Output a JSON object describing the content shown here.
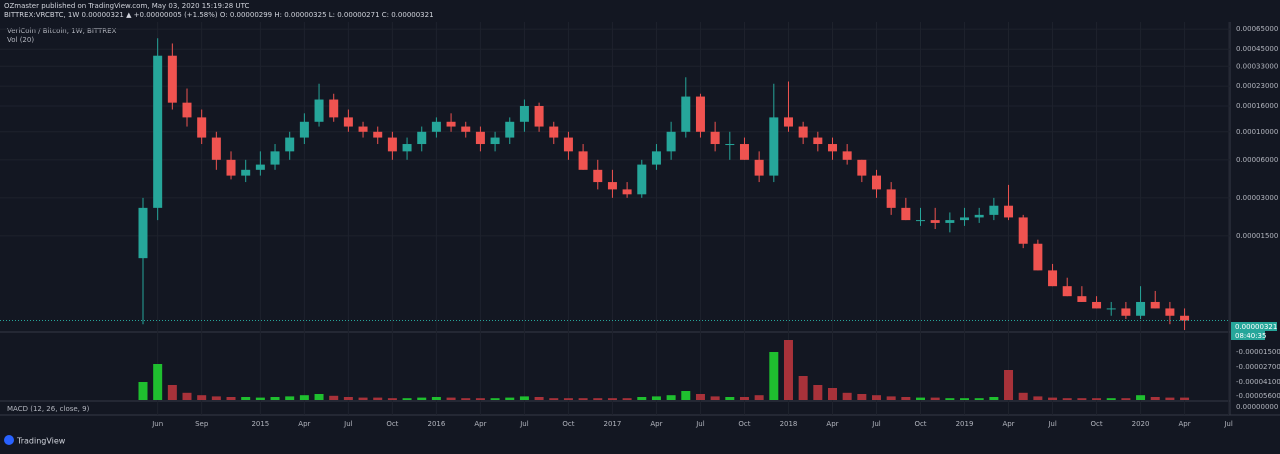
{
  "header": {
    "line1": "OZmaster published on TradingView.com, May 03, 2020 15:19:28 UTC",
    "line2": "BITTREX:VRCBTC, 1W  0.00000321  ▲ +0.00000005 (+1.58%)  O: 0.00000299  H: 0.00000325  L: 0.00000271  C: 0.00000321"
  },
  "footer": {
    "brand": "TradingView"
  },
  "chart_data": {
    "type": "candlestick",
    "title": "VeriCoin / Bitcoin, 1W, BITTREX",
    "volume_label": "Vol (20)",
    "macd_label": "MACD (12, 26, close, 9)",
    "last_price": "0.00000321",
    "countdown": "08:40:35",
    "y_scale": "log",
    "up_color": "#26a69a",
    "down_color": "#ef5350",
    "up_volume_color": "#1fbf2f",
    "down_volume_color": "#a8323a",
    "lower_axis_labels": [
      "-0.00001500",
      "-0.00002700",
      "-0.00004100",
      "-0.00005600",
      "0.00000000"
    ],
    "ylim": [
      2.8e-06,
      0.0007
    ],
    "yticks": [
      {
        "value": 0.00065,
        "label": "0.00065000"
      },
      {
        "value": 0.00045,
        "label": "0.00045000"
      },
      {
        "value": 0.00033,
        "label": "0.00033000"
      },
      {
        "value": 0.00023,
        "label": "0.00023000"
      },
      {
        "value": 0.00016,
        "label": "0.00016000"
      },
      {
        "value": 0.0001,
        "label": "0.00010000"
      },
      {
        "value": 6e-05,
        "label": "0.00006000"
      },
      {
        "value": 3e-05,
        "label": "0.00003000"
      },
      {
        "value": 1.5e-05,
        "label": "0.00001500"
      }
    ],
    "xticks": [
      {
        "value": "2014-06",
        "label": "Jun"
      },
      {
        "value": "2014-09",
        "label": "Sep"
      },
      {
        "value": "2015-01",
        "label": "2015"
      },
      {
        "value": "2015-04",
        "label": "Apr"
      },
      {
        "value": "2015-07",
        "label": "Jul"
      },
      {
        "value": "2015-10",
        "label": "Oct"
      },
      {
        "value": "2016-01",
        "label": "2016"
      },
      {
        "value": "2016-04",
        "label": "Apr"
      },
      {
        "value": "2016-07",
        "label": "Jul"
      },
      {
        "value": "2016-10",
        "label": "Oct"
      },
      {
        "value": "2017-01",
        "label": "2017"
      },
      {
        "value": "2017-04",
        "label": "Apr"
      },
      {
        "value": "2017-07",
        "label": "Jul"
      },
      {
        "value": "2017-10",
        "label": "Oct"
      },
      {
        "value": "2018-01",
        "label": "2018"
      },
      {
        "value": "2018-04",
        "label": "Apr"
      },
      {
        "value": "2018-07",
        "label": "Jul"
      },
      {
        "value": "2018-10",
        "label": "Oct"
      },
      {
        "value": "2019-01",
        "label": "2019"
      },
      {
        "value": "2019-04",
        "label": "Apr"
      },
      {
        "value": "2019-07",
        "label": "Jul"
      },
      {
        "value": "2019-10",
        "label": "Oct"
      },
      {
        "value": "2020-01",
        "label": "2020"
      },
      {
        "value": "2020-04",
        "label": "Apr"
      },
      {
        "value": "2020-07",
        "label": "Jul"
      }
    ],
    "x": [
      "2014-05",
      "2014-06",
      "2014-07",
      "2014-08",
      "2014-09",
      "2014-10",
      "2014-11",
      "2014-12",
      "2015-01",
      "2015-02",
      "2015-03",
      "2015-04",
      "2015-05",
      "2015-06",
      "2015-07",
      "2015-08",
      "2015-09",
      "2015-10",
      "2015-11",
      "2015-12",
      "2016-01",
      "2016-02",
      "2016-03",
      "2016-04",
      "2016-05",
      "2016-06",
      "2016-07",
      "2016-08",
      "2016-09",
      "2016-10",
      "2016-11",
      "2016-12",
      "2017-01",
      "2017-02",
      "2017-03",
      "2017-04",
      "2017-05",
      "2017-06",
      "2017-07",
      "2017-08",
      "2017-09",
      "2017-10",
      "2017-11",
      "2017-12",
      "2018-01",
      "2018-02",
      "2018-03",
      "2018-04",
      "2018-05",
      "2018-06",
      "2018-07",
      "2018-08",
      "2018-09",
      "2018-10",
      "2018-11",
      "2018-12",
      "2019-01",
      "2019-02",
      "2019-03",
      "2019-04",
      "2019-05",
      "2019-06",
      "2019-07",
      "2019-08",
      "2019-09",
      "2019-10",
      "2019-11",
      "2019-12",
      "2020-01",
      "2020-02",
      "2020-03",
      "2020-04"
    ],
    "open": [
      1e-05,
      2.5e-05,
      0.0004,
      0.00017,
      0.00013,
      9e-05,
      6e-05,
      4.5e-05,
      5e-05,
      5.5e-05,
      7e-05,
      9e-05,
      0.00012,
      0.00018,
      0.00013,
      0.00011,
      0.0001,
      9e-05,
      7e-05,
      8e-05,
      0.0001,
      0.00012,
      0.00011,
      0.0001,
      8e-05,
      9e-05,
      0.00012,
      0.00016,
      0.00011,
      9e-05,
      7e-05,
      5e-05,
      4e-05,
      3.5e-05,
      3.2e-05,
      5.5e-05,
      7e-05,
      0.0001,
      0.00019,
      0.0001,
      8e-05,
      8e-05,
      6e-05,
      4.5e-05,
      0.00013,
      0.00011,
      9e-05,
      8e-05,
      7e-05,
      6e-05,
      4.5e-05,
      3.5e-05,
      2.5e-05,
      2e-05,
      2e-05,
      1.9e-05,
      2e-05,
      2.1e-05,
      2.2e-05,
      2.6e-05,
      2.1e-05,
      1.3e-05,
      8e-06,
      6e-06,
      5e-06,
      4.5e-06,
      4e-06,
      4e-06,
      3.5e-06,
      4.5e-06,
      4e-06,
      3.5e-06
    ],
    "high": [
      3e-05,
      0.00055,
      0.0005,
      0.00022,
      0.00015,
      0.0001,
      7e-05,
      6e-05,
      7e-05,
      8e-05,
      0.0001,
      0.00014,
      0.00024,
      0.0002,
      0.00015,
      0.00012,
      0.00011,
      0.0001,
      9e-05,
      0.00011,
      0.00013,
      0.00014,
      0.00012,
      0.00011,
      0.0001,
      0.00013,
      0.00018,
      0.00017,
      0.00012,
      0.0001,
      8e-05,
      6e-05,
      5e-05,
      4e-05,
      6e-05,
      8e-05,
      0.00012,
      0.00027,
      0.0002,
      0.00012,
      0.0001,
      9e-05,
      7e-05,
      0.00024,
      0.00025,
      0.00012,
      0.0001,
      9e-05,
      8e-05,
      6e-05,
      5e-05,
      4e-05,
      3e-05,
      2.5e-05,
      2.5e-05,
      2.3e-05,
      2.5e-05,
      2.5e-05,
      3e-05,
      3.8e-05,
      2.2e-05,
      1.4e-05,
      9e-06,
      7e-06,
      6e-06,
      5e-06,
      4.5e-06,
      4.5e-06,
      6e-06,
      5.5e-06,
      4.5e-06,
      4e-06
    ],
    "low": [
      3e-06,
      2e-05,
      0.00015,
      0.00011,
      8e-05,
      5e-05,
      4.2e-05,
      4e-05,
      4.5e-05,
      5e-05,
      6e-05,
      8e-05,
      0.00011,
      0.00012,
      0.0001,
      9e-05,
      8e-05,
      6e-05,
      6e-05,
      7e-05,
      9e-05,
      0.0001,
      9e-05,
      7e-05,
      7e-05,
      8e-05,
      0.0001,
      0.0001,
      8e-05,
      6e-05,
      5e-05,
      3.5e-05,
      3e-05,
      3e-05,
      3e-05,
      5e-05,
      6e-05,
      9e-05,
      9e-05,
      7e-05,
      6e-05,
      6e-05,
      4e-05,
      4e-05,
      0.0001,
      8e-05,
      7e-05,
      6e-05,
      5.5e-05,
      4e-05,
      3e-05,
      2.2e-05,
      2e-05,
      1.8e-05,
      1.7e-05,
      1.6e-05,
      1.8e-05,
      1.9e-05,
      2e-05,
      2e-05,
      1.2e-05,
      8e-06,
      6e-06,
      5e-06,
      4.5e-06,
      4e-06,
      3.5e-06,
      3.3e-06,
      3.3e-06,
      4e-06,
      3e-06,
      2.7e-06
    ],
    "close": [
      2.5e-05,
      0.0004,
      0.00017,
      0.00013,
      9e-05,
      6e-05,
      4.5e-05,
      5e-05,
      5.5e-05,
      7e-05,
      9e-05,
      0.00012,
      0.00018,
      0.00013,
      0.00011,
      0.0001,
      9e-05,
      7e-05,
      8e-05,
      0.0001,
      0.00012,
      0.00011,
      0.0001,
      8e-05,
      9e-05,
      0.00012,
      0.00016,
      0.00011,
      9e-05,
      7e-05,
      5e-05,
      4e-05,
      3.5e-05,
      3.2e-05,
      5.5e-05,
      7e-05,
      0.0001,
      0.00019,
      0.0001,
      8e-05,
      8e-05,
      6e-05,
      4.5e-05,
      0.00013,
      0.00011,
      9e-05,
      8e-05,
      7e-05,
      6e-05,
      4.5e-05,
      3.5e-05,
      2.5e-05,
      2e-05,
      2e-05,
      1.9e-05,
      2e-05,
      2.1e-05,
      2.2e-05,
      2.6e-05,
      2.1e-05,
      1.3e-05,
      8e-06,
      6e-06,
      5e-06,
      4.5e-06,
      4e-06,
      4e-06,
      3.5e-06,
      4.5e-06,
      4e-06,
      3.5e-06,
      3.21e-06
    ],
    "volume": [
      30,
      60,
      25,
      12,
      8,
      6,
      5,
      5,
      4,
      5,
      6,
      8,
      10,
      7,
      5,
      4,
      4,
      3,
      3,
      4,
      5,
      4,
      3,
      3,
      3,
      4,
      6,
      5,
      3,
      3,
      3,
      3,
      3,
      3,
      5,
      6,
      8,
      15,
      10,
      6,
      5,
      5,
      8,
      80,
      100,
      40,
      25,
      20,
      12,
      10,
      8,
      6,
      5,
      4,
      4,
      3,
      3,
      3,
      5,
      50,
      12,
      6,
      4,
      3,
      3,
      3,
      3,
      3,
      8,
      5,
      4,
      4
    ]
  }
}
